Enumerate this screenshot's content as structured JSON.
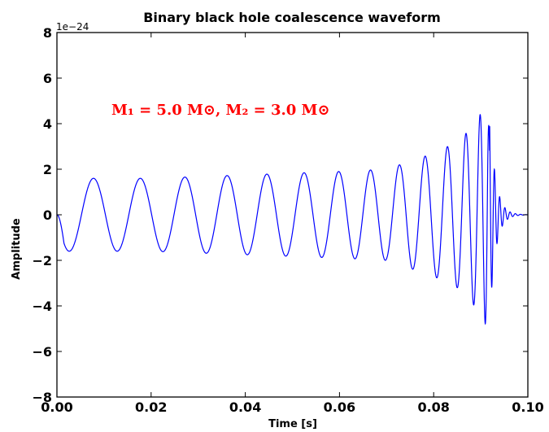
{
  "chart_data": {
    "type": "line",
    "title": "Binary black hole coalescence waveform",
    "xlabel": "Time [s]",
    "ylabel": "Amplitude",
    "y_offset_label": "1e−24",
    "xlim": [
      0.0,
      0.1
    ],
    "ylim": [
      -8,
      8
    ],
    "x_ticks": [
      "0.00",
      "0.02",
      "0.04",
      "0.06",
      "0.08",
      "0.10"
    ],
    "y_ticks": [
      "−8",
      "−6",
      "−4",
      "−2",
      "0",
      "2",
      "4",
      "6",
      "8"
    ],
    "grid": false,
    "legend": "none",
    "annotation": "M₁ = 5.0 M⊙, M₂ = 3.0 M⊙",
    "series": [
      {
        "color": "#0000ff",
        "description_points": {
          "x": [
            0.0,
            0.0015,
            0.0045,
            0.0105,
            0.02,
            0.04,
            0.06,
            0.07,
            0.08,
            0.085,
            0.088,
            0.0905,
            0.0915,
            0.0925,
            0.1
          ],
          "envelope": [
            0.0,
            1.6,
            1.6,
            1.6,
            1.6,
            1.75,
            1.9,
            2.0,
            2.7,
            3.2,
            3.8,
            4.6,
            5.0,
            0.2,
            0.0
          ]
        }
      }
    ],
    "colors": {
      "line": "#0000ff",
      "annotation": "#ff0000"
    }
  }
}
